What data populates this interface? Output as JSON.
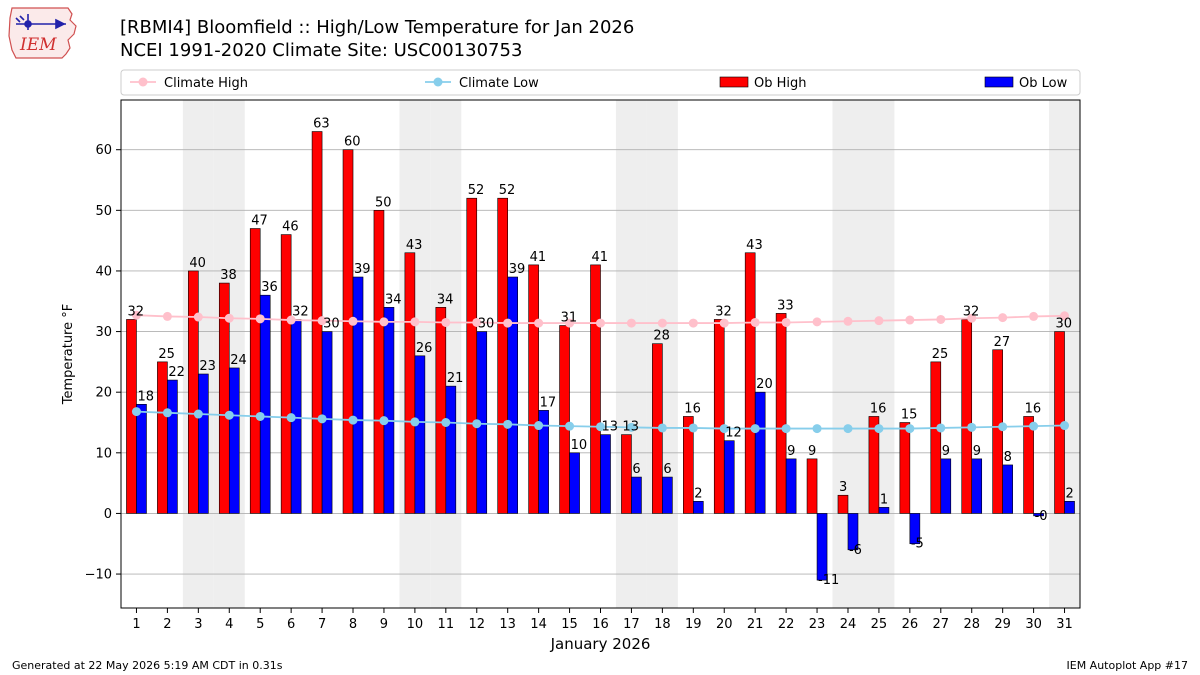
{
  "header": {
    "title_line1": "[RBMI4] Bloomfield :: High/Low Temperature for Jan 2026",
    "title_line2": "NCEI 1991-2020 Climate Site: USC00130753",
    "logo_text": "IEM",
    "logo_icon": "iowa-state-outline-icon"
  },
  "footer": {
    "generated": "Generated at 22 May 2026 5:19 AM CDT in 0.31s",
    "app": "IEM Autoplot App #17"
  },
  "colors": {
    "ob_high": "#ff0000",
    "ob_low": "#0000ff",
    "climate_high": "#ffc0cb",
    "climate_low": "#87ceeb",
    "weekend_band": "#eeeeee",
    "grid": "#b0b0b0"
  },
  "chart_data": {
    "type": "bar",
    "xlabel": "January 2026",
    "ylabel": "Temperature °F",
    "ylim": [
      -15.6,
      68.2
    ],
    "yticks": [
      -10,
      0,
      10,
      20,
      30,
      40,
      50,
      60
    ],
    "grid": "horizontal",
    "legend_position": "top",
    "categories": [
      "1",
      "2",
      "3",
      "4",
      "5",
      "6",
      "7",
      "8",
      "9",
      "10",
      "11",
      "12",
      "13",
      "14",
      "15",
      "16",
      "17",
      "18",
      "19",
      "20",
      "21",
      "22",
      "23",
      "24",
      "25",
      "26",
      "27",
      "28",
      "29",
      "30",
      "31"
    ],
    "weekend_days": [
      3,
      4,
      10,
      11,
      17,
      18,
      24,
      25,
      31
    ],
    "series": [
      {
        "name": "Ob High",
        "kind": "bar",
        "color": "#ff0000",
        "values": [
          32,
          25,
          40,
          38,
          47,
          46,
          63,
          60,
          50,
          43,
          34,
          52,
          52,
          41,
          31,
          41,
          13,
          28,
          16,
          32,
          43,
          33,
          9,
          3,
          16,
          15,
          25,
          32,
          27,
          16,
          30
        ],
        "labels": [
          "32",
          "25",
          "40",
          "38",
          "47",
          "46",
          "63",
          "60",
          "50",
          "43",
          "34",
          "52",
          "52",
          "41",
          "31",
          "41",
          "13",
          "28",
          "16",
          "32",
          "43",
          "33",
          "9",
          "3",
          "16",
          "15",
          "25",
          "32",
          "27",
          "16",
          "30"
        ]
      },
      {
        "name": "Ob Low",
        "kind": "bar",
        "color": "#0000ff",
        "values": [
          18,
          22,
          23,
          24,
          36,
          32,
          30,
          39,
          34,
          26,
          21,
          30,
          39,
          17,
          10,
          13,
          6,
          6,
          2,
          12,
          20,
          9,
          -11,
          -6,
          1,
          -5,
          9,
          9,
          8,
          -0.4,
          2
        ],
        "labels": [
          "18",
          "22",
          "23",
          "24",
          "36",
          "32",
          "30",
          "39",
          "34",
          "26",
          "21",
          "30",
          "39",
          "17",
          "10",
          "13",
          "6",
          "6",
          "2",
          "12",
          "20",
          "9",
          "-11",
          "-6",
          "1",
          "-5",
          "9",
          "9",
          "8",
          "-0",
          "2"
        ]
      },
      {
        "name": "Climate High",
        "kind": "line",
        "color": "#ffc0cb",
        "values": [
          32.7,
          32.5,
          32.4,
          32.2,
          32.1,
          31.9,
          31.8,
          31.7,
          31.6,
          31.6,
          31.5,
          31.5,
          31.4,
          31.4,
          31.4,
          31.4,
          31.4,
          31.4,
          31.4,
          31.4,
          31.5,
          31.5,
          31.6,
          31.7,
          31.8,
          31.9,
          32.0,
          32.2,
          32.3,
          32.5,
          32.6
        ]
      },
      {
        "name": "Climate Low",
        "kind": "line",
        "color": "#87ceeb",
        "values": [
          16.8,
          16.6,
          16.4,
          16.2,
          16.0,
          15.8,
          15.6,
          15.4,
          15.3,
          15.1,
          15.0,
          14.8,
          14.7,
          14.5,
          14.4,
          14.3,
          14.2,
          14.1,
          14.1,
          14.0,
          14.0,
          14.0,
          14.0,
          14.0,
          14.0,
          14.0,
          14.1,
          14.2,
          14.3,
          14.4,
          14.5
        ]
      }
    ]
  }
}
